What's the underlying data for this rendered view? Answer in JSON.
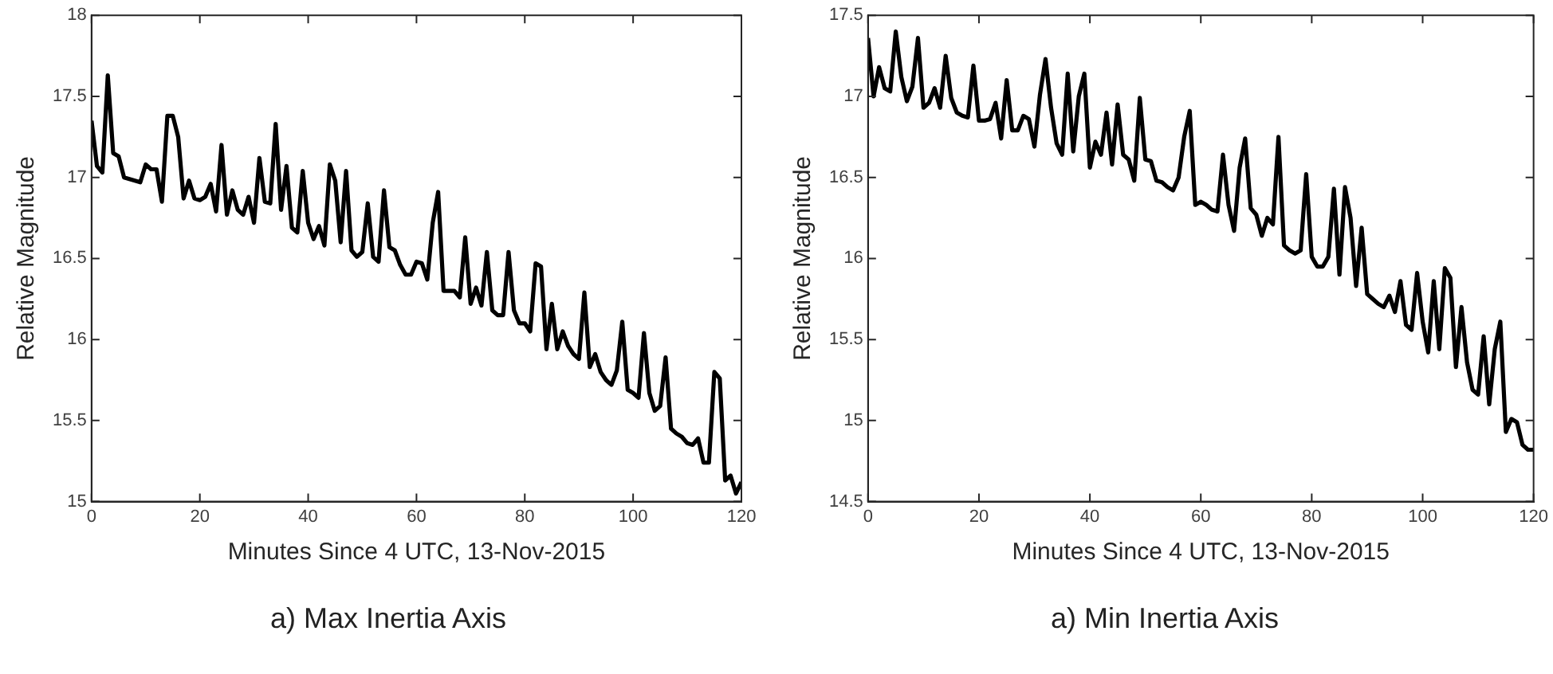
{
  "chart_data": [
    {
      "type": "line",
      "title": "a) Max Inertia Axis",
      "xlabel": "Minutes Since 4 UTC, 13-Nov-2015",
      "ylabel": "Relative Magnitude",
      "x": [
        0,
        1,
        2,
        3,
        4,
        5,
        6,
        7,
        9,
        10,
        11,
        12,
        13,
        14,
        15,
        16,
        17,
        18,
        19,
        20,
        21,
        22,
        23,
        24,
        25,
        26,
        27,
        28,
        29,
        30,
        31,
        32,
        33,
        34,
        35,
        36,
        37,
        38,
        39,
        40,
        41,
        42,
        43,
        44,
        45,
        46,
        47,
        48,
        49,
        50,
        51,
        52,
        53,
        54,
        55,
        56,
        57,
        58,
        59,
        60,
        61,
        62,
        63,
        64,
        65,
        66,
        67,
        68,
        69,
        70,
        71,
        72,
        73,
        74,
        75,
        76,
        77,
        78,
        79,
        80,
        81,
        82,
        83,
        84,
        85,
        86,
        87,
        88,
        89,
        90,
        91,
        92,
        93,
        94,
        95,
        96,
        97,
        98,
        99,
        100,
        101,
        102,
        103,
        104,
        105,
        106,
        107,
        108,
        109,
        110,
        111,
        112,
        113,
        114,
        115,
        116,
        117,
        118,
        119,
        120
      ],
      "series": [
        {
          "color": "#000000",
          "values": [
            17.35,
            17.07,
            17.03,
            17.63,
            17.15,
            17.13,
            17.0,
            16.99,
            16.97,
            17.08,
            17.05,
            17.05,
            16.85,
            17.38,
            17.38,
            17.25,
            16.87,
            16.98,
            16.87,
            16.86,
            16.88,
            16.96,
            16.79,
            17.2,
            16.77,
            16.92,
            16.8,
            16.77,
            16.88,
            16.72,
            17.12,
            16.85,
            16.84,
            17.33,
            16.8,
            17.07,
            16.69,
            16.66,
            17.04,
            16.72,
            16.62,
            16.7,
            16.58,
            17.08,
            16.98,
            16.6,
            17.04,
            16.55,
            16.51,
            16.54,
            16.84,
            16.51,
            16.48,
            16.92,
            16.57,
            16.55,
            16.46,
            16.4,
            16.4,
            16.48,
            16.47,
            16.37,
            16.72,
            16.91,
            16.3,
            16.3,
            16.3,
            16.26,
            16.63,
            16.22,
            16.32,
            16.21,
            16.54,
            16.18,
            16.15,
            16.15,
            16.54,
            16.18,
            16.1,
            16.1,
            16.05,
            16.47,
            16.45,
            15.94,
            16.22,
            15.94,
            16.05,
            15.96,
            15.91,
            15.88,
            16.29,
            15.83,
            15.91,
            15.8,
            15.75,
            15.72,
            15.81,
            16.11,
            15.69,
            15.67,
            15.64,
            16.04,
            15.67,
            15.56,
            15.59,
            15.89,
            15.45,
            15.42,
            15.4,
            15.36,
            15.35,
            15.39,
            15.24,
            15.24,
            15.8,
            15.76,
            15.13,
            15.16,
            15.05,
            15.12
          ]
        }
      ],
      "xlim": [
        0,
        120
      ],
      "xticks": [
        0,
        20,
        40,
        60,
        80,
        100,
        120
      ],
      "ylim": [
        15,
        18
      ],
      "yticks": [
        15,
        15.5,
        16,
        16.5,
        17,
        17.5,
        18
      ],
      "grid": false,
      "legend": false,
      "marker": "none",
      "line_style": "solid"
    },
    {
      "type": "line",
      "title": "a) Min Inertia Axis",
      "xlabel": "Minutes Since 4 UTC, 13-Nov-2015",
      "ylabel": "Relative Magnitude",
      "x": [
        0,
        1,
        2,
        3,
        4,
        5,
        6,
        7,
        8,
        9,
        10,
        11,
        12,
        13,
        14,
        15,
        16,
        17,
        18,
        19,
        20,
        21,
        22,
        23,
        24,
        25,
        26,
        27,
        28,
        29,
        30,
        31,
        32,
        33,
        34,
        35,
        36,
        37,
        38,
        39,
        40,
        41,
        42,
        43,
        44,
        45,
        46,
        47,
        48,
        49,
        50,
        51,
        52,
        53,
        54,
        55,
        56,
        57,
        58,
        59,
        60,
        61,
        62,
        63,
        64,
        65,
        66,
        67,
        68,
        69,
        70,
        71,
        72,
        73,
        74,
        75,
        76,
        77,
        78,
        79,
        80,
        81,
        82,
        83,
        84,
        85,
        86,
        87,
        88,
        89,
        90,
        91,
        92,
        93,
        94,
        95,
        96,
        97,
        98,
        99,
        100,
        101,
        102,
        103,
        104,
        105,
        106,
        107,
        108,
        109,
        110,
        111,
        112,
        113,
        114,
        115,
        116,
        117,
        118,
        119,
        120
      ],
      "series": [
        {
          "color": "#000000",
          "values": [
            17.36,
            17.0,
            17.18,
            17.05,
            17.03,
            17.4,
            17.12,
            16.97,
            17.06,
            17.36,
            16.93,
            16.96,
            17.05,
            16.93,
            17.25,
            16.99,
            16.9,
            16.88,
            16.87,
            17.19,
            16.85,
            16.85,
            16.86,
            16.96,
            16.74,
            17.1,
            16.79,
            16.79,
            16.88,
            16.86,
            16.69,
            17.01,
            17.23,
            16.93,
            16.71,
            16.64,
            17.14,
            16.66,
            17.0,
            17.14,
            16.56,
            16.72,
            16.64,
            16.9,
            16.58,
            16.95,
            16.64,
            16.61,
            16.48,
            16.99,
            16.61,
            16.6,
            16.48,
            16.47,
            16.44,
            16.42,
            16.5,
            16.75,
            16.91,
            16.33,
            16.35,
            16.33,
            16.3,
            16.29,
            16.64,
            16.33,
            16.17,
            16.56,
            16.74,
            16.31,
            16.27,
            16.14,
            16.25,
            16.21,
            16.75,
            16.08,
            16.05,
            16.03,
            16.05,
            16.52,
            16.01,
            15.95,
            15.95,
            16.01,
            16.43,
            15.9,
            16.44,
            16.25,
            15.83,
            16.19,
            15.78,
            15.75,
            15.72,
            15.7,
            15.77,
            15.67,
            15.86,
            15.59,
            15.56,
            15.91,
            15.61,
            15.42,
            15.86,
            15.44,
            15.94,
            15.88,
            15.33,
            15.7,
            15.36,
            15.19,
            15.16,
            15.52,
            15.1,
            15.44,
            15.61,
            14.93,
            15.01,
            14.99,
            14.85,
            14.82,
            14.82
          ]
        }
      ],
      "xlim": [
        0,
        120
      ],
      "xticks": [
        0,
        20,
        40,
        60,
        80,
        100,
        120
      ],
      "ylim": [
        14.5,
        17.5
      ],
      "yticks": [
        14.5,
        15,
        15.5,
        16,
        16.5,
        17,
        17.5
      ],
      "grid": false,
      "legend": false,
      "marker": "none",
      "line_style": "solid"
    }
  ]
}
